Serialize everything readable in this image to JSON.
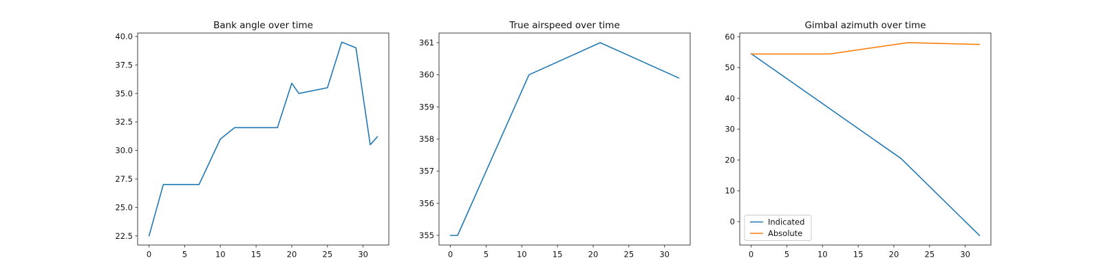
{
  "figure": {
    "background": "#ffffff",
    "text_color": "#111111",
    "spine_color": "#3c3c3c"
  },
  "chart_data": [
    {
      "type": "line",
      "title": "Bank angle over time",
      "xlabel": "",
      "ylabel": "",
      "grid": false,
      "xlim": [
        -1.6,
        33.6
      ],
      "ylim": [
        21.7,
        40.3
      ],
      "xticks": [
        0,
        5,
        10,
        15,
        20,
        25,
        30
      ],
      "xtick_labels": [
        "0",
        "5",
        "10",
        "15",
        "20",
        "25",
        "30"
      ],
      "yticks": [
        22.5,
        25.0,
        27.5,
        30.0,
        32.5,
        35.0,
        37.5,
        40.0
      ],
      "ytick_labels": [
        "22.5",
        "25.0",
        "27.5",
        "30.0",
        "32.5",
        "35.0",
        "37.5",
        "40.0"
      ],
      "legend": null,
      "series": [
        {
          "name": "Bank angle",
          "color": "#1f77b4",
          "x": [
            0,
            2,
            7,
            10,
            12,
            18,
            20,
            21,
            25,
            27,
            29,
            31,
            32
          ],
          "y": [
            22.5,
            27.0,
            27.0,
            31.0,
            32.0,
            32.0,
            35.9,
            35.0,
            35.5,
            39.5,
            39.0,
            30.5,
            31.2
          ]
        }
      ]
    },
    {
      "type": "line",
      "title": "True airspeed over time",
      "xlabel": "",
      "ylabel": "",
      "grid": false,
      "xlim": [
        -1.6,
        33.6
      ],
      "ylim": [
        354.7,
        361.3
      ],
      "xticks": [
        0,
        5,
        10,
        15,
        20,
        25,
        30
      ],
      "xtick_labels": [
        "0",
        "5",
        "10",
        "15",
        "20",
        "25",
        "30"
      ],
      "yticks": [
        355,
        356,
        357,
        358,
        359,
        360,
        361
      ],
      "ytick_labels": [
        "355",
        "356",
        "357",
        "358",
        "359",
        "360",
        "361"
      ],
      "legend": null,
      "series": [
        {
          "name": "True airspeed",
          "color": "#1f77b4",
          "x": [
            0,
            1,
            11,
            21,
            32
          ],
          "y": [
            355.0,
            355.0,
            360.0,
            361.0,
            359.9
          ]
        }
      ]
    },
    {
      "type": "line",
      "title": "Gimbal azimuth over time",
      "xlabel": "",
      "ylabel": "",
      "grid": false,
      "xlim": [
        -1.6,
        33.6
      ],
      "ylim": [
        -7.6,
        61.2
      ],
      "xticks": [
        0,
        5,
        10,
        15,
        20,
        25,
        30
      ],
      "xtick_labels": [
        "0",
        "5",
        "10",
        "15",
        "20",
        "25",
        "30"
      ],
      "yticks": [
        0,
        10,
        20,
        30,
        40,
        50,
        60
      ],
      "ytick_labels": [
        "0",
        "10",
        "20",
        "30",
        "40",
        "50",
        "60"
      ],
      "legend": {
        "position": "lower left",
        "labels": [
          "Indicated",
          "Absolute"
        ]
      },
      "series": [
        {
          "name": "Indicated",
          "color": "#1f77b4",
          "x": [
            0,
            21,
            32
          ],
          "y": [
            54.5,
            20.5,
            -4.5
          ]
        },
        {
          "name": "Absolute",
          "color": "#ff7f0e",
          "x": [
            0,
            11,
            22,
            32
          ],
          "y": [
            54.4,
            54.4,
            58.1,
            57.5
          ]
        }
      ]
    }
  ]
}
